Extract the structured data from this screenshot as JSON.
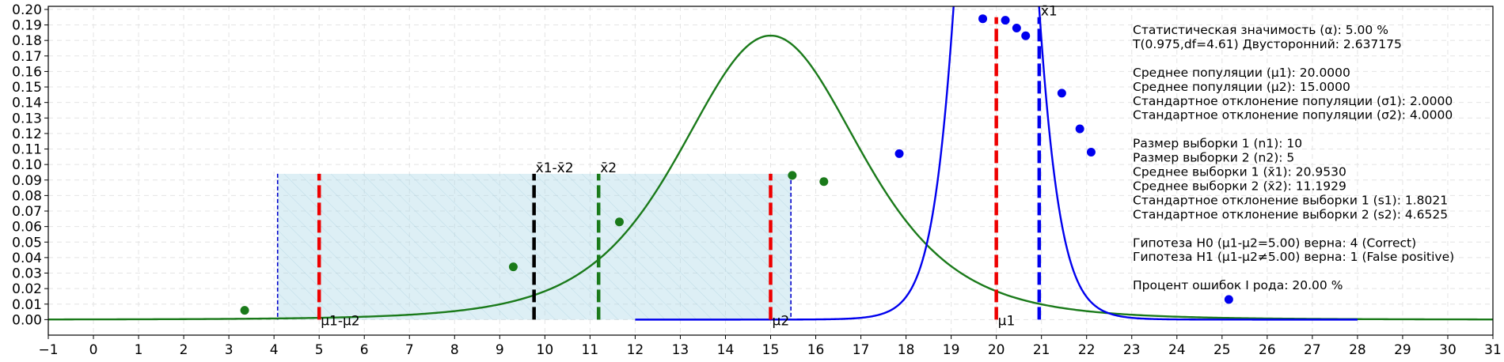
{
  "chart_data": {
    "type": "line",
    "xlim": [
      -1,
      31
    ],
    "ylim": [
      -0.01,
      0.202
    ],
    "x_ticks": [
      -1,
      0,
      1,
      2,
      3,
      4,
      5,
      6,
      7,
      8,
      9,
      10,
      11,
      12,
      13,
      14,
      15,
      16,
      17,
      18,
      19,
      20,
      21,
      22,
      23,
      24,
      25,
      26,
      27,
      28,
      29,
      30,
      31
    ],
    "y_ticks": [
      0.0,
      0.01,
      0.02,
      0.03,
      0.04,
      0.05,
      0.06,
      0.07,
      0.08,
      0.09,
      0.1,
      0.11,
      0.12,
      0.13,
      0.14,
      0.15,
      0.16,
      0.17,
      0.18,
      0.19,
      0.2
    ],
    "grid": true,
    "region": {
      "x_from": 4.08,
      "x_to": 15.45,
      "y_top": 0.094
    },
    "series": [
      {
        "color": "#1a7a1a",
        "curve": {
          "mean": 15.0,
          "scale": 2.0643,
          "df": 4.61,
          "x_from": -1,
          "x_to": 31
        },
        "points": [
          {
            "x": 3.35,
            "y": 0.006
          },
          {
            "x": 9.3,
            "y": 0.034
          },
          {
            "x": 11.65,
            "y": 0.063
          },
          {
            "x": 15.48,
            "y": 0.093
          },
          {
            "x": 16.18,
            "y": 0.089
          }
        ]
      },
      {
        "color": "#0000ee",
        "curve": {
          "mean": 20.0,
          "scale": 0.63246,
          "df": 9,
          "x_from": 12,
          "x_to": 28
        },
        "points": [
          {
            "x": 17.85,
            "y": 0.107
          },
          {
            "x": 19.7,
            "y": 0.194
          },
          {
            "x": 20.2,
            "y": 0.193
          },
          {
            "x": 20.45,
            "y": 0.188
          },
          {
            "x": 20.65,
            "y": 0.183
          },
          {
            "x": 21.45,
            "y": 0.146
          },
          {
            "x": 21.85,
            "y": 0.123
          },
          {
            "x": 22.1,
            "y": 0.108
          },
          {
            "x": 25.15,
            "y": 0.013
          }
        ]
      }
    ],
    "vlines": [
      {
        "x": 5.0,
        "y_top": 0.094,
        "color": "#ee0000",
        "label": "μ1-μ2",
        "label_pos": "bottom"
      },
      {
        "x": 9.76,
        "y_top": 0.094,
        "color": "#000000",
        "label": "x̄1-x̄2",
        "label_pos": "top"
      },
      {
        "x": 11.19,
        "y_top": 0.094,
        "color": "#1a7a1a",
        "label": "x̄2",
        "label_pos": "top"
      },
      {
        "x": 15.0,
        "y_top": 0.094,
        "color": "#ee0000",
        "label": "μ2",
        "label_pos": "bottom"
      },
      {
        "x": 20.0,
        "y_top": 0.195,
        "color": "#ee0000",
        "label": "μ1",
        "label_pos": "bottom"
      },
      {
        "x": 20.95,
        "y_top": 0.195,
        "color": "#0000ee",
        "label": "x̄1",
        "label_pos": "top"
      }
    ],
    "annotations": [
      "Статистическая значимость (α): 5.00 %",
      "T(0.975,df=4.61) Двусторонний: 2.637175",
      "",
      "Среднее популяции (μ1): 20.0000",
      "Среднее популяции (μ2): 15.0000",
      "Стандартное отклонение популяции (σ1): 2.0000",
      "Стандартное отклонение популяции (σ2): 4.0000",
      "",
      "Размер выборки 1 (n1): 10",
      "Размер выборки 2 (n2): 5",
      "Среднее выборки 1 (x̄1): 20.9530",
      "Среднее выборки 2 (x̄2): 11.1929",
      "Стандартное отклонение выборки 1 (s1): 1.8021",
      "Стандартное отклонение выборки 2 (s2): 4.6525",
      "",
      "Гипотеза H0 (μ1-μ2=5.00) верна: 4 (Correct)",
      "Гипотеза H1 (μ1-μ2≠5.00) верна: 1 (False positive)",
      "",
      "Процент ошибок I рода: 20.00 %"
    ]
  }
}
